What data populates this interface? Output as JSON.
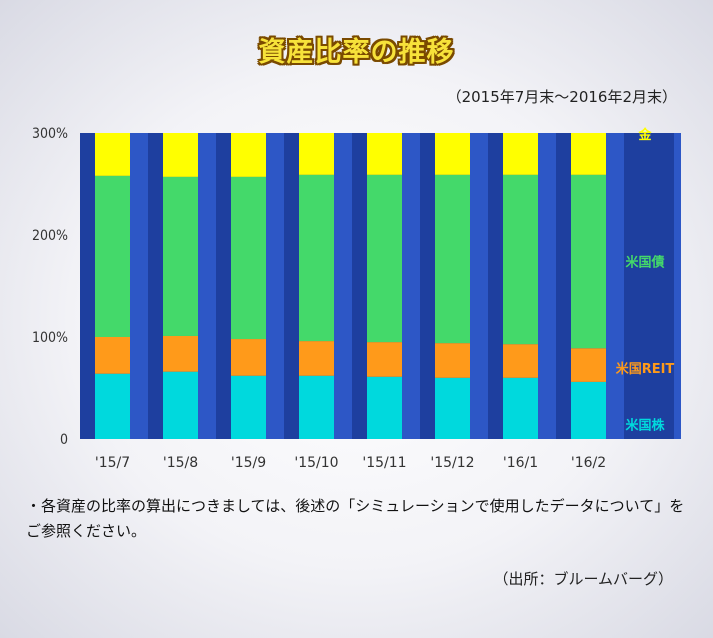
{
  "title": "資産比率の推移",
  "subtitle": "（2015年7月末～2016年2月末）",
  "note": "・各資産の比率の算出につきましては、後述の「シミュレーションで使用したデータについて」をご参照ください。",
  "source": "（出所：ブルームバーグ）",
  "chart_data": {
    "type": "bar",
    "stacked": true,
    "categories": [
      "'15/7",
      "'15/8",
      "'15/9",
      "'15/10",
      "'15/11",
      "'15/12",
      "'16/1",
      "'16/2"
    ],
    "y_tick_labels": [
      "0",
      "100%",
      "200%",
      "300%"
    ],
    "ylim": [
      0,
      300
    ],
    "series": [
      {
        "name": "米国株",
        "color": "#00d9dd",
        "values": [
          64,
          66,
          62,
          62,
          61,
          60,
          60,
          56
        ]
      },
      {
        "name": "米国REIT",
        "color": "#ff9a1a",
        "values": [
          36,
          35,
          36,
          34,
          34,
          34,
          33,
          33
        ]
      },
      {
        "name": "米国債",
        "color": "#44d96a",
        "values": [
          158,
          156,
          159,
          163,
          164,
          165,
          166,
          170
        ]
      },
      {
        "name": "金",
        "color": "#ffff00",
        "values": [
          42,
          43,
          43,
          41,
          41,
          41,
          41,
          41
        ]
      }
    ]
  }
}
